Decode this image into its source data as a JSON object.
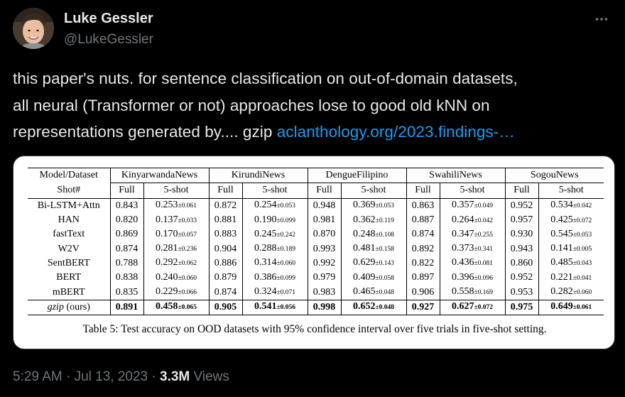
{
  "author": {
    "name": "Luke Gessler",
    "handle": "@LukeGessler"
  },
  "tweet": {
    "lines": [
      "this paper's nuts. for sentence classification on out-of-domain datasets,",
      "all neural (Transformer or not) approaches lose to good old kNN on"
    ],
    "line3_text": "representations generated by.... gzip ",
    "link_text": "aclanthology.org/2023.findings-…"
  },
  "table": {
    "corner_top": "Model/Dataset",
    "corner_bottom": "Shot#",
    "datasets": [
      "KinyarwandaNews",
      "KirundiNews",
      "DengueFilipino",
      "SwahiliNews",
      "SogouNews"
    ],
    "shot_full": "Full",
    "shot_five": "5-shot",
    "rows": [
      {
        "model": "Bi-LSTM+Attn",
        "bold": false,
        "cells": [
          {
            "full": "0.843",
            "five": "0.253",
            "ci": "±0.061"
          },
          {
            "full": "0.872",
            "five": "0.254",
            "ci": "±0.053"
          },
          {
            "full": "0.948",
            "five": "0.369",
            "ci": "±0.053"
          },
          {
            "full": "0.863",
            "five": "0.357",
            "ci": "±0.049"
          },
          {
            "full": "0.952",
            "five": "0.534",
            "ci": "±0.042"
          }
        ]
      },
      {
        "model": "HAN",
        "bold": false,
        "cells": [
          {
            "full": "0.820",
            "five": "0.137",
            "ci": "±0.033"
          },
          {
            "full": "0.881",
            "five": "0.190",
            "ci": "±0.099"
          },
          {
            "full": "0.981",
            "five": "0.362",
            "ci": "±0.119"
          },
          {
            "full": "0.887",
            "five": "0.264",
            "ci": "±0.042"
          },
          {
            "full": "0.957",
            "five": "0.425",
            "ci": "±0.072"
          }
        ]
      },
      {
        "model": "fastText",
        "bold": false,
        "cells": [
          {
            "full": "0.869",
            "five": "0.170",
            "ci": "±0.057"
          },
          {
            "full": "0.883",
            "five": "0.245",
            "ci": "±0.242"
          },
          {
            "full": "0.870",
            "five": "0.248",
            "ci": "±0.108"
          },
          {
            "full": "0.874",
            "five": "0.347",
            "ci": "±0.255"
          },
          {
            "full": "0.930",
            "five": "0.545",
            "ci": "±0.053"
          }
        ]
      },
      {
        "model": "W2V",
        "bold": false,
        "cells": [
          {
            "full": "0.874",
            "five": "0.281",
            "ci": "±0.236"
          },
          {
            "full": "0.904",
            "five": "0.288",
            "ci": "±0.189"
          },
          {
            "full": "0.993",
            "five": "0.481",
            "ci": "±0.158"
          },
          {
            "full": "0.892",
            "five": "0.373",
            "ci": "±0.341"
          },
          {
            "full": "0.943",
            "five": "0.141",
            "ci": "±0.005"
          }
        ]
      },
      {
        "model": "SentBERT",
        "bold": false,
        "cells": [
          {
            "full": "0.788",
            "five": "0.292",
            "ci": "±0.062"
          },
          {
            "full": "0.886",
            "five": "0.314",
            "ci": "±0.060"
          },
          {
            "full": "0.992",
            "five": "0.629",
            "ci": "±0.143"
          },
          {
            "full": "0.822",
            "five": "0.436",
            "ci": "±0.081"
          },
          {
            "full": "0.860",
            "five": "0.485",
            "ci": "±0.043"
          }
        ]
      },
      {
        "model": "BERT",
        "bold": false,
        "cells": [
          {
            "full": "0.838",
            "five": "0.240",
            "ci": "±0.060"
          },
          {
            "full": "0.879",
            "five": "0.386",
            "ci": "±0.099"
          },
          {
            "full": "0.979",
            "five": "0.409",
            "ci": "±0.058"
          },
          {
            "full": "0.897",
            "five": "0.396",
            "ci": "±0.096"
          },
          {
            "full": "0.952",
            "five": "0.221",
            "ci": "±0.041"
          }
        ]
      },
      {
        "model": "mBERT",
        "bold": false,
        "cells": [
          {
            "full": "0.835",
            "five": "0.229",
            "ci": "±0.066"
          },
          {
            "full": "0.874",
            "five": "0.324",
            "ci": "±0.071"
          },
          {
            "full": "0.983",
            "five": "0.465",
            "ci": "±0.048"
          },
          {
            "full": "0.906",
            "five": "0.558",
            "ci": "±0.169"
          },
          {
            "full": "0.953",
            "five": "0.282",
            "ci": "±0.060"
          }
        ]
      },
      {
        "model_italic": "gzip",
        "model_suffix": " (ours)",
        "bold": true,
        "cells": [
          {
            "full": "0.891",
            "five": "0.458",
            "ci": "±0.065"
          },
          {
            "full": "0.905",
            "five": "0.541",
            "ci": "±0.056"
          },
          {
            "full": "0.998",
            "five": "0.652",
            "ci": "±0.048"
          },
          {
            "full": "0.927",
            "five": "0.627",
            "ci": "±0.072"
          },
          {
            "full": "0.975",
            "five": "0.649",
            "ci": "±0.061"
          }
        ]
      }
    ],
    "caption": "Table 5: Test accuracy on OOD datasets with 95% confidence interval over five trials in five-shot setting."
  },
  "meta": {
    "time_date": "5:29 AM · Jul 13, 2023 · ",
    "views_count": "3.3M",
    "views_label": " Views"
  },
  "icons": {
    "more": "more-options-icon",
    "avatar": "avatar"
  },
  "colors": {
    "background": "#000000",
    "text": "#e7e9ea",
    "secondary": "#71767b",
    "link": "#1d9bf0"
  }
}
